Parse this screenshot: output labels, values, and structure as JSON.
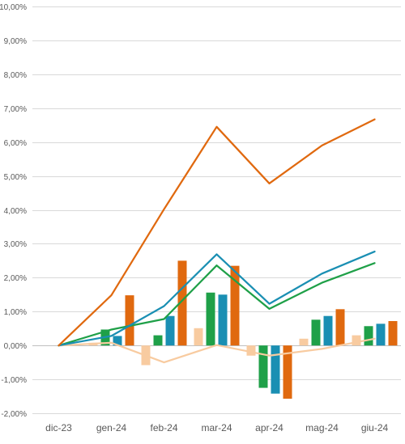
{
  "chart_data": {
    "type": "bar",
    "categories": [
      "dic-23",
      "gen-24",
      "feb-24",
      "mar-24",
      "apr-24",
      "mag-24",
      "giu-24"
    ],
    "ylim": [
      -2,
      10
    ],
    "yticks": [
      -2,
      -1,
      0,
      1,
      2,
      3,
      4,
      5,
      6,
      7,
      8,
      9,
      10
    ],
    "ytick_labels": [
      "-2,00%",
      "-1,00%",
      "0,00%",
      "1,00%",
      "2,00%",
      "3,00%",
      "4,00%",
      "5,00%",
      "6,00%",
      "7,00%",
      "8,00%",
      "9,00%",
      "10,00%"
    ],
    "grid": "horizontal",
    "legend": "none",
    "bar_series": [
      {
        "color": "#f8cba0",
        "values": [
          0,
          0.08,
          -0.58,
          0.51,
          -0.3,
          0.2,
          0.3
        ]
      },
      {
        "color": "#1fa048",
        "values": [
          0,
          0.47,
          0.3,
          1.56,
          -1.25,
          0.76,
          0.57
        ]
      },
      {
        "color": "#1a8fb3",
        "values": [
          0,
          0.28,
          0.87,
          1.5,
          -1.42,
          0.87,
          0.64
        ]
      },
      {
        "color": "#e0690f",
        "values": [
          0,
          1.48,
          2.5,
          2.35,
          -1.57,
          1.07,
          0.72
        ]
      }
    ],
    "line_series": [
      {
        "color": "#f8cba0",
        "values": [
          0,
          0.08,
          -0.5,
          0.01,
          -0.3,
          -0.1,
          0.2
        ]
      },
      {
        "color": "#1fa048",
        "values": [
          0,
          0.47,
          0.78,
          2.36,
          1.08,
          1.85,
          2.43
        ]
      },
      {
        "color": "#1a8fb3",
        "values": [
          0,
          0.28,
          1.16,
          2.69,
          1.23,
          2.12,
          2.77
        ]
      },
      {
        "color": "#e0690f",
        "values": [
          0,
          1.48,
          4.02,
          6.45,
          4.78,
          5.9,
          6.67
        ]
      }
    ]
  }
}
